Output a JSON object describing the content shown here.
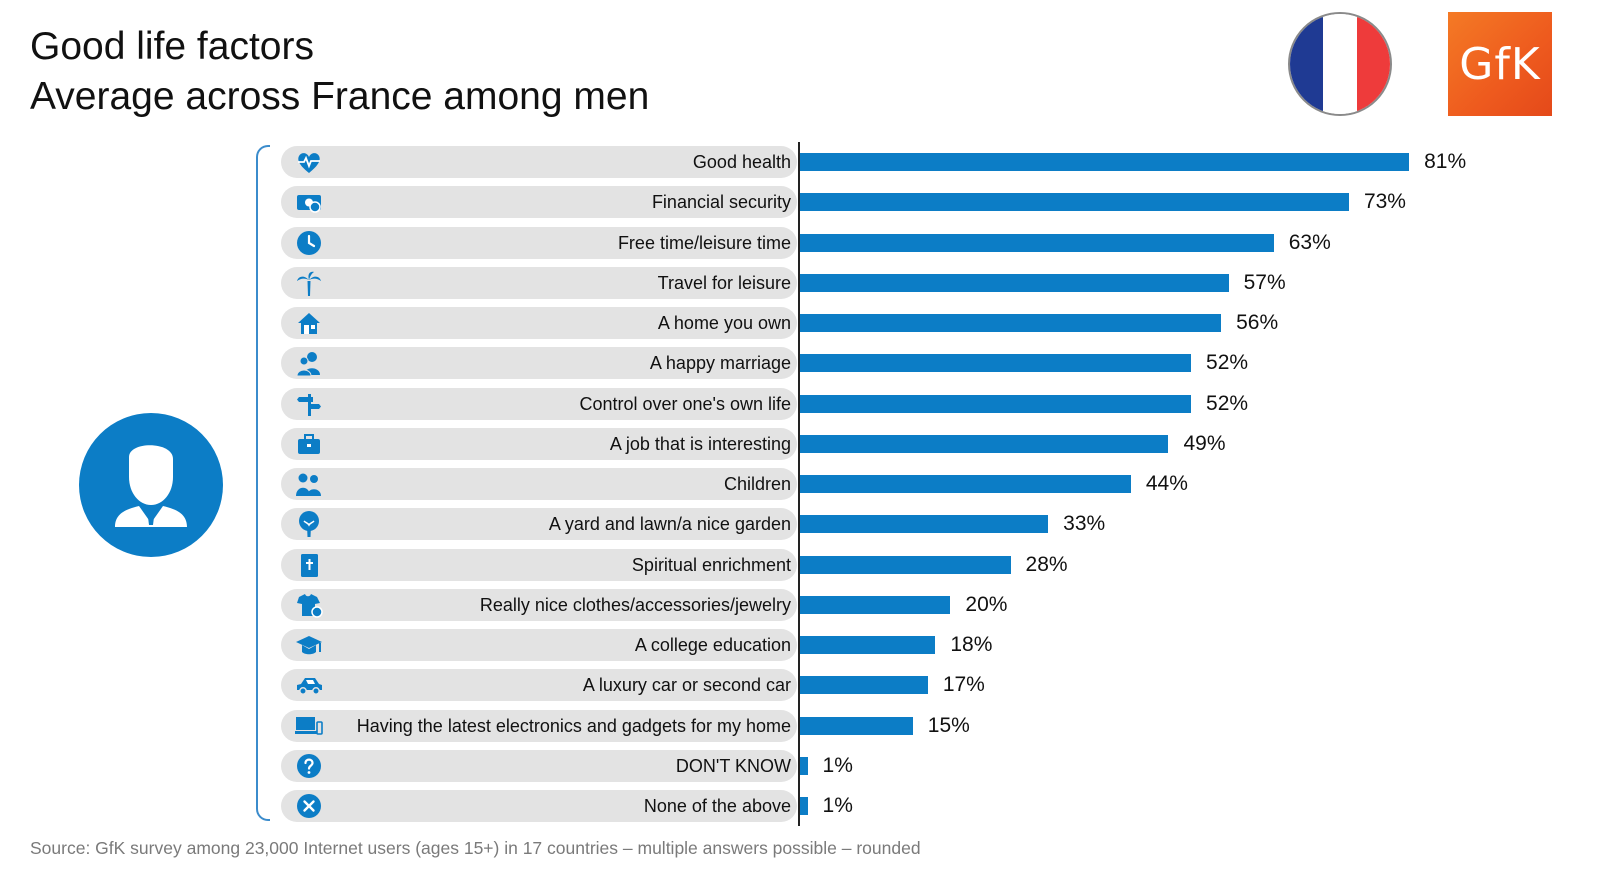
{
  "header": {
    "title_line1": "Good life factors",
    "title_line2": "Average across France among men"
  },
  "logo": {
    "text": "GfK"
  },
  "flag": {
    "colors": [
      "#1f3a93",
      "#ffffff",
      "#ee3b3b"
    ]
  },
  "colors": {
    "bar": "#0c7dc6",
    "accent": "#0c7dc6",
    "pill": "#e3e3e3",
    "logo": "#ef5a1f"
  },
  "chart_data": {
    "type": "bar",
    "orientation": "horizontal",
    "categories": [
      "Good health",
      "Financial security",
      "Free time/leisure time",
      "Travel for leisure",
      "A home you own",
      "A happy marriage",
      "Control over one's own life",
      "A job that is interesting",
      "Children",
      "A yard and lawn/a nice garden",
      "Spiritual enrichment",
      "Really nice clothes/accessories/jewelry",
      "A college education",
      "A luxury car or second car",
      "Having the latest electronics and gadgets for my home",
      "DON'T KNOW",
      "None of the above"
    ],
    "values": [
      81,
      73,
      63,
      57,
      56,
      52,
      52,
      49,
      44,
      33,
      28,
      20,
      18,
      17,
      15,
      1,
      1
    ],
    "value_labels": [
      "81%",
      "73%",
      "63%",
      "57%",
      "56%",
      "52%",
      "52%",
      "49%",
      "44%",
      "33%",
      "28%",
      "20%",
      "18%",
      "17%",
      "15%",
      "1%",
      "1%"
    ],
    "icons": [
      "heartbeat-icon",
      "money-icon",
      "clock-icon",
      "palm-tree-icon",
      "house-icon",
      "couple-icon",
      "signpost-icon",
      "briefcase-icon",
      "children-icon",
      "tree-icon",
      "bible-icon",
      "clothes-icon",
      "graduation-cap-icon",
      "car-icon",
      "laptop-icon",
      "question-icon",
      "close-icon"
    ],
    "unit": "%"
  },
  "footer": {
    "source": "Source: GfK survey among 23,000 Internet users (ages 15+) in 17 countries – multiple answers possible – rounded"
  }
}
